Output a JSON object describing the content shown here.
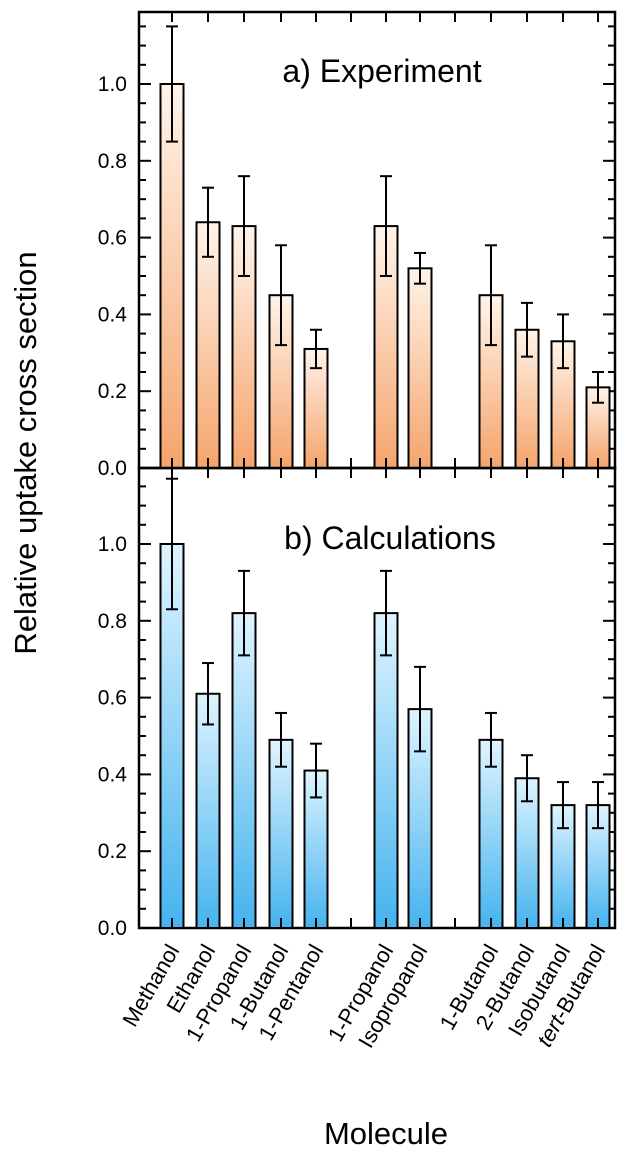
{
  "colors": {
    "experiment_top": "#fff4ea",
    "experiment_bottom": "#f5a46c",
    "calculations_top": "#dff4ff",
    "calculations_bottom": "#45b3ee",
    "frame": "#000000"
  },
  "chart_data": {
    "type": "bar",
    "ylabel": "Relative uptake cross section",
    "xlabel": "Molecule",
    "grid": false,
    "ylim": [
      0,
      1.15
    ],
    "yticks": [
      "0.0",
      "0.2",
      "0.4",
      "0.6",
      "0.8",
      "1.0"
    ],
    "categories": [
      "Methanol",
      "Ethanol",
      "1-Propanol",
      "1-Butanol",
      "1-Pentanol",
      "",
      "1-Propanol",
      "Isopropanol",
      "",
      "1-Butanol",
      "2-Butanol",
      "Isobutanol",
      "tert-Butanol"
    ],
    "panels": [
      {
        "title": "a) Experiment",
        "values": [
          1.0,
          0.64,
          0.63,
          0.45,
          0.31,
          null,
          0.63,
          0.52,
          null,
          0.45,
          0.36,
          0.33,
          0.21
        ],
        "errors": [
          0.15,
          0.09,
          0.13,
          0.13,
          0.05,
          null,
          0.13,
          0.04,
          null,
          0.13,
          0.07,
          0.07,
          0.04
        ]
      },
      {
        "title": "b) Calculations",
        "values": [
          1.0,
          0.61,
          0.82,
          0.49,
          0.41,
          null,
          0.82,
          0.57,
          null,
          0.49,
          0.39,
          0.32,
          0.32
        ],
        "errors": [
          0.17,
          0.08,
          0.11,
          0.07,
          0.07,
          null,
          0.11,
          0.11,
          null,
          0.07,
          0.06,
          0.06,
          0.06
        ]
      }
    ]
  }
}
